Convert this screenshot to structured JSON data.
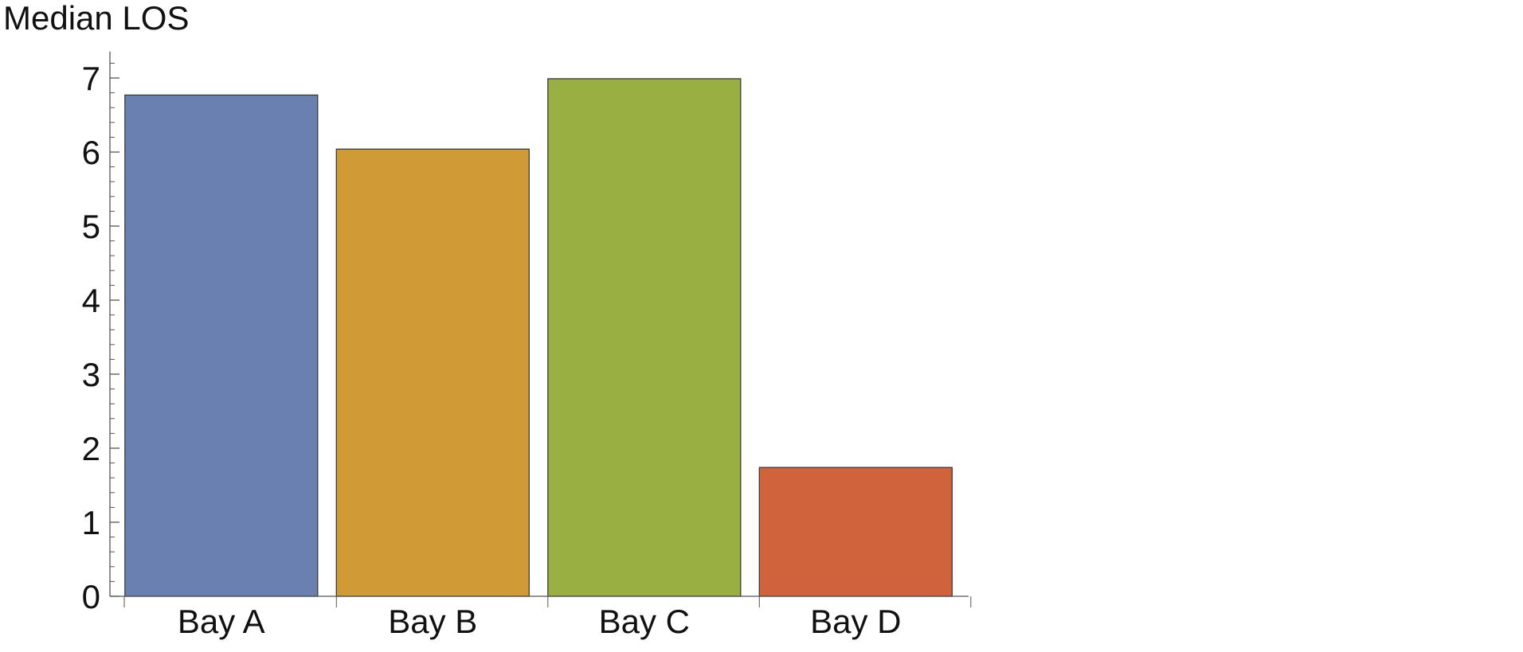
{
  "chart_data": {
    "type": "bar",
    "ylabel": "Median LOS",
    "xlabel": "",
    "title": "",
    "categories": [
      "Bay A",
      "Bay B",
      "Bay C",
      "Bay D"
    ],
    "values": [
      6.77,
      6.04,
      6.99,
      1.74
    ],
    "colors": [
      "#6A80B1",
      "#D09B36",
      "#99AF42",
      "#D0623C"
    ],
    "ylim": [
      0,
      7.25
    ],
    "y_major_ticks": [
      0,
      1,
      2,
      3,
      4,
      5,
      6,
      7
    ],
    "y_minor_step": 0.2,
    "grid": false,
    "legend": "none"
  }
}
